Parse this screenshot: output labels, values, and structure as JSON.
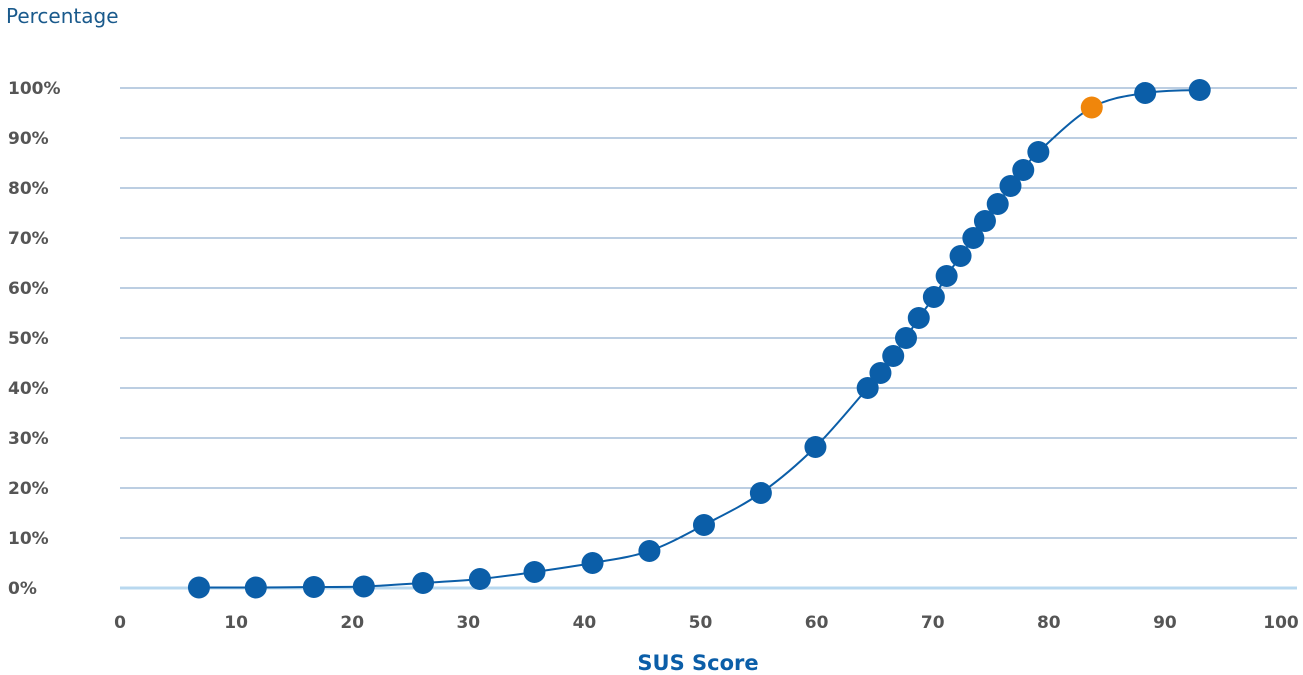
{
  "chart_data": {
    "type": "scatter",
    "ylabel": "Percentage",
    "xlabel": "SUS Score",
    "xlim": [
      0,
      100
    ],
    "ylim": [
      0,
      100
    ],
    "x_ticks": [
      "0",
      "10",
      "20",
      "30",
      "40",
      "50",
      "60",
      "70",
      "80",
      "90",
      "100"
    ],
    "y_ticks": [
      "0%",
      "10%",
      "20%",
      "30%",
      "40%",
      "50%",
      "60%",
      "70%",
      "80%",
      "90%",
      "100%"
    ],
    "grid": "horizontal",
    "series": [
      {
        "color": "#0b5ea8",
        "line": "smooth",
        "points": [
          {
            "x": 6.8,
            "y": 0.1
          },
          {
            "x": 11.7,
            "y": 0.1
          },
          {
            "x": 16.7,
            "y": 0.2
          },
          {
            "x": 21.0,
            "y": 0.3
          },
          {
            "x": 26.1,
            "y": 1.0
          },
          {
            "x": 31.0,
            "y": 1.8
          },
          {
            "x": 35.7,
            "y": 3.2
          },
          {
            "x": 40.7,
            "y": 5.0
          },
          {
            "x": 45.6,
            "y": 7.4
          },
          {
            "x": 50.3,
            "y": 12.6
          },
          {
            "x": 55.2,
            "y": 19.0
          },
          {
            "x": 59.9,
            "y": 28.2
          },
          {
            "x": 64.4,
            "y": 40.0
          },
          {
            "x": 65.5,
            "y": 43.0
          },
          {
            "x": 66.6,
            "y": 46.4
          },
          {
            "x": 67.7,
            "y": 50.0
          },
          {
            "x": 68.8,
            "y": 54.0
          },
          {
            "x": 70.1,
            "y": 58.2
          },
          {
            "x": 71.2,
            "y": 62.4
          },
          {
            "x": 72.4,
            "y": 66.4
          },
          {
            "x": 73.5,
            "y": 70.0
          },
          {
            "x": 74.5,
            "y": 73.4
          },
          {
            "x": 75.6,
            "y": 76.8
          },
          {
            "x": 76.7,
            "y": 80.4
          },
          {
            "x": 77.8,
            "y": 83.6
          },
          {
            "x": 79.1,
            "y": 87.2
          },
          {
            "x": 83.7,
            "y": 96.1
          },
          {
            "x": 88.3,
            "y": 99.0
          },
          {
            "x": 93.0,
            "y": 99.6
          }
        ]
      }
    ],
    "highlight": {
      "x": 83.7,
      "y": 96.1,
      "color": "#f0860b"
    },
    "colors": {
      "series": "#0b5ea8",
      "highlight": "#f0860b",
      "grid": "#7a9cc4",
      "baseline": "#b8d8ef",
      "ytitle": "#1a5a8c",
      "ticks": "#555555"
    }
  }
}
